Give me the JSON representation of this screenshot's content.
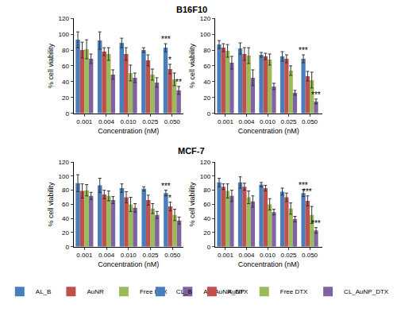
{
  "chart_data": [
    {
      "type": "bar",
      "title": "B16F10",
      "x_label": "Concentration (nM)",
      "y_label": "% cell viability",
      "categories": [
        "0.001",
        "0.004",
        "0.010",
        "0.025",
        "0.050"
      ],
      "ylim": [
        0,
        120
      ],
      "yticks": [
        0,
        20,
        40,
        60,
        80,
        100,
        120
      ],
      "grid": false,
      "series": [
        {
          "name": "AL_B",
          "color": "#4a7ebb",
          "values": [
            93,
            92,
            89,
            80,
            83
          ],
          "errors": [
            10,
            11,
            6,
            3,
            5
          ]
        },
        {
          "name": "AuNR",
          "color": "#c0504d",
          "values": [
            80,
            78,
            75,
            67,
            56
          ],
          "errors": [
            10,
            5,
            8,
            7,
            6
          ]
        },
        {
          "name": "Free DTX",
          "color": "#9bbb59",
          "values": [
            81,
            75,
            51,
            49,
            43
          ],
          "errors": [
            12,
            8,
            10,
            7,
            8
          ]
        },
        {
          "name": "AL_AuNR_DTX",
          "color": "#8064a2",
          "values": [
            69,
            49,
            45,
            39,
            29
          ],
          "errors": [
            6,
            6,
            6,
            6,
            5
          ]
        }
      ],
      "annotations": [
        {
          "category": "0.050",
          "series": "AL_B",
          "text": "***"
        },
        {
          "category": "0.050",
          "series": "AuNR",
          "text": "*"
        },
        {
          "category": "0.050",
          "series": "AL_AuNR_DTX",
          "text": "**"
        }
      ]
    },
    {
      "type": "bar",
      "x_label": "Concentration (nM)",
      "y_label": "% cell viability",
      "categories": [
        "0.001",
        "0.004",
        "0.010",
        "0.025",
        "0.050"
      ],
      "ylim": [
        0,
        120
      ],
      "yticks": [
        0,
        20,
        40,
        60,
        80,
        100,
        120
      ],
      "grid": false,
      "series": [
        {
          "name": "CL_B",
          "color": "#4a7ebb",
          "values": [
            87,
            82,
            74,
            72,
            69
          ],
          "errors": [
            5,
            7,
            3,
            6,
            5
          ]
        },
        {
          "name": "AuNP",
          "color": "#c0504d",
          "values": [
            83,
            75,
            72,
            69,
            47
          ],
          "errors": [
            5,
            8,
            4,
            5,
            6
          ]
        },
        {
          "name": "Free DTX",
          "color": "#9bbb59",
          "values": [
            79,
            73,
            68,
            54,
            42
          ],
          "errors": [
            8,
            10,
            7,
            6,
            10
          ]
        },
        {
          "name": "CL_AuNP_DTX",
          "color": "#8064a2",
          "values": [
            64,
            45,
            34,
            26,
            15
          ],
          "errors": [
            8,
            10,
            4,
            3,
            3
          ]
        }
      ],
      "annotations": [
        {
          "category": "0.050",
          "series": "CL_B",
          "text": "***"
        },
        {
          "category": "0.050",
          "series": "CL_AuNP_DTX",
          "text": "***"
        }
      ]
    },
    {
      "type": "bar",
      "title": "MCF-7",
      "x_label": "Concentration (nM)",
      "y_label": "% cell viability",
      "categories": [
        "0.001",
        "0.004",
        "0.010",
        "0.025",
        "0.050"
      ],
      "ylim": [
        0,
        120
      ],
      "yticks": [
        0,
        20,
        40,
        60,
        80,
        100,
        120
      ],
      "grid": false,
      "legend": "bottom",
      "series": [
        {
          "name": "AL_B",
          "color": "#4a7ebb",
          "values": [
            90,
            87,
            83,
            82,
            76
          ],
          "errors": [
            12,
            10,
            6,
            3,
            4
          ]
        },
        {
          "name": "AuNR",
          "color": "#c0504d",
          "values": [
            79,
            74,
            70,
            66,
            57
          ],
          "errors": [
            10,
            6,
            8,
            7,
            6
          ]
        },
        {
          "name": "Free DTX",
          "color": "#9bbb59",
          "values": [
            80,
            72,
            60,
            54,
            45
          ],
          "errors": [
            8,
            7,
            10,
            7,
            8
          ]
        },
        {
          "name": "AL_AuNR_DTX",
          "color": "#8064a2",
          "values": [
            72,
            66,
            55,
            45,
            37
          ],
          "errors": [
            5,
            5,
            6,
            5,
            5
          ]
        }
      ],
      "annotations": [
        {
          "category": "0.050",
          "series": "AL_B",
          "text": "***"
        },
        {
          "category": "0.050",
          "series": "AuNR",
          "text": "*"
        }
      ]
    },
    {
      "type": "bar",
      "x_label": "Concentration (nM)",
      "y_label": "% cell viability",
      "categories": [
        "0.001",
        "0.004",
        "0.010",
        "0.025",
        "0.050"
      ],
      "ylim": [
        0,
        120
      ],
      "yticks": [
        0,
        20,
        40,
        60,
        80,
        100,
        120
      ],
      "grid": false,
      "legend": "bottom",
      "series": [
        {
          "name": "CL_B",
          "color": "#4a7ebb",
          "values": [
            91,
            91,
            88,
            78,
            76
          ],
          "errors": [
            6,
            8,
            3,
            5,
            5
          ]
        },
        {
          "name": "AuNP",
          "color": "#c0504d",
          "values": [
            85,
            85,
            83,
            70,
            65
          ],
          "errors": [
            4,
            5,
            4,
            6,
            7
          ]
        },
        {
          "name": "Free DTX",
          "color": "#9bbb59",
          "values": [
            79,
            70,
            60,
            54,
            45
          ],
          "errors": [
            10,
            9,
            8,
            8,
            12
          ]
        },
        {
          "name": "CL_AuNP_DTX",
          "color": "#8064a2",
          "values": [
            72,
            64,
            49,
            39,
            23
          ],
          "errors": [
            8,
            8,
            4,
            4,
            4
          ]
        }
      ],
      "annotations": [
        {
          "category": "0.050",
          "series": "CL_B",
          "text": "***"
        },
        {
          "category": "0.050",
          "series": "AuNP",
          "text": "***"
        },
        {
          "category": "0.050",
          "series": "CL_AuNP_DTX",
          "text": "***"
        }
      ]
    }
  ]
}
